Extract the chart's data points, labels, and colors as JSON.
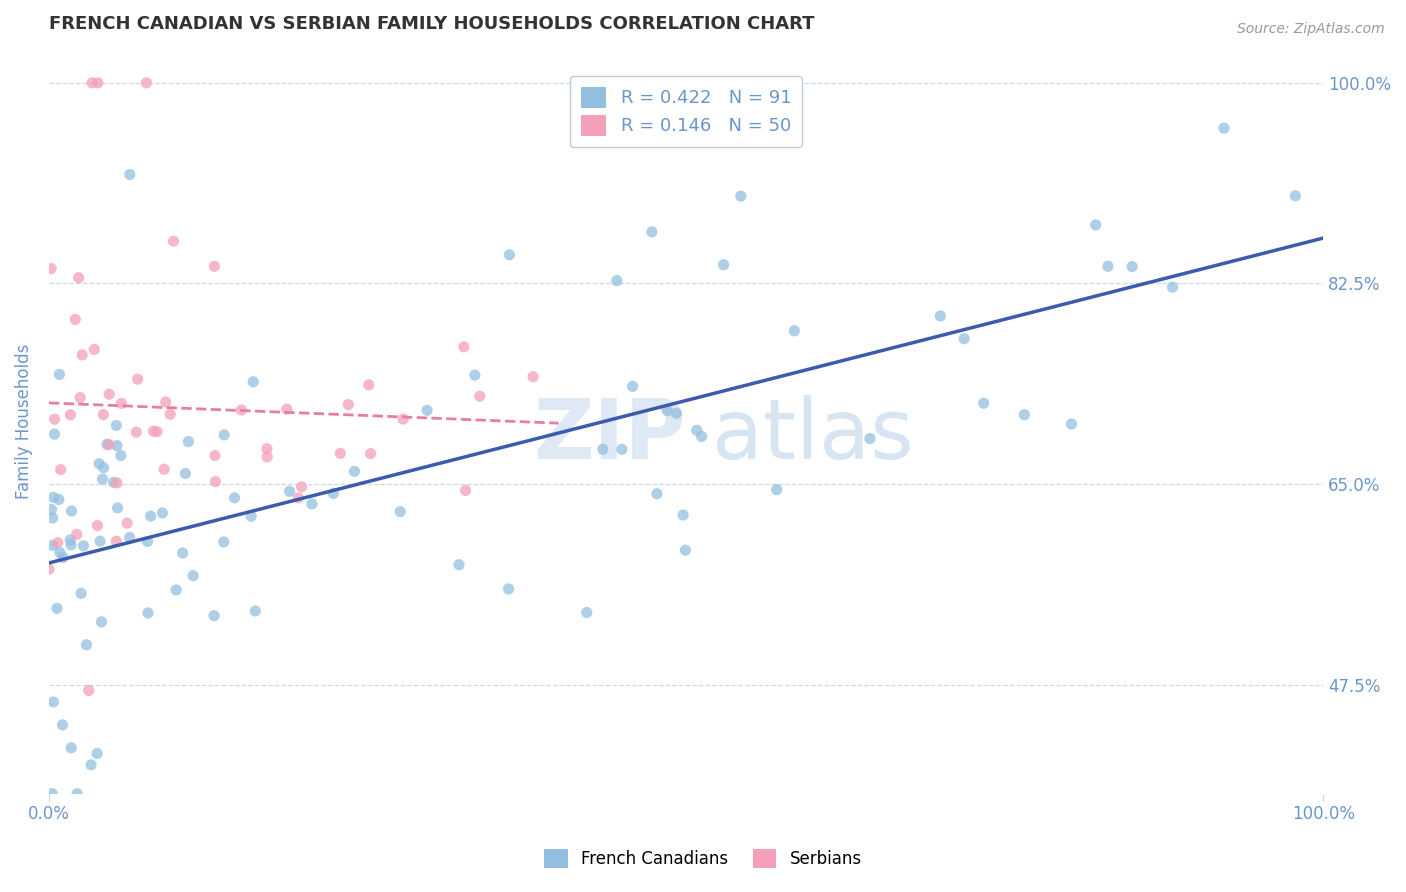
{
  "title": "FRENCH CANADIAN VS SERBIAN FAMILY HOUSEHOLDS CORRELATION CHART",
  "source": "Source: ZipAtlas.com",
  "ylabel": "Family Households",
  "xlim": [
    0.0,
    1.0
  ],
  "ylim": [
    0.38,
    1.03
  ],
  "xtick_positions": [
    0.0,
    1.0
  ],
  "xtick_labels": [
    "0.0%",
    "100.0%"
  ],
  "ytick_values": [
    0.475,
    0.65,
    0.825,
    1.0
  ],
  "ytick_labels": [
    "47.5%",
    "65.0%",
    "82.5%",
    "100.0%"
  ],
  "legend_R1": "0.422",
  "legend_N1": "91",
  "legend_R2": "0.146",
  "legend_N2": "50",
  "color_blue": "#92BFE0",
  "color_pink": "#F4A0B8",
  "color_blue_line": "#3B5BAD",
  "color_pink_line": "#E87DA0",
  "title_color": "#333333",
  "axis_color": "#6B96CC",
  "grid_color": "#C8D8E8",
  "bottom_legend_label1": "French Canadians",
  "bottom_legend_label2": "Serbians"
}
